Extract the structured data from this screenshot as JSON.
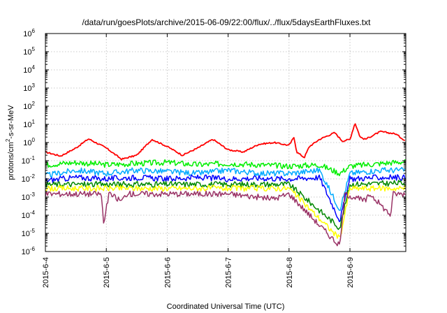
{
  "chart_data": {
    "type": "line",
    "title": "/data/run/goesPlots/archive/2015-06-09/22:00/flux/../flux/5daysEarthFluxes.txt",
    "xlabel": "Coordinated Universal Time (UTC)",
    "ylabel": {
      "pre": "protons/cm",
      "sup": "2",
      "post": "-s-sr-MeV"
    },
    "yscale": "log",
    "ylim": [
      1e-06,
      1000000.0
    ],
    "xlim": [
      "2015-06-04",
      "2015-06-09 22:00"
    ],
    "grid": true,
    "legend": "none",
    "x_ticks": [
      "2015-6-4",
      "2015-6-5",
      "2015-6-6",
      "2015-6-7",
      "2015-6-8",
      "2015-6-9"
    ],
    "y_ticks": [
      {
        "base": "10",
        "exp": "-6"
      },
      {
        "base": "10",
        "exp": "-5"
      },
      {
        "base": "10",
        "exp": "-4"
      },
      {
        "base": "10",
        "exp": "-3"
      },
      {
        "base": "10",
        "exp": "-2"
      },
      {
        "base": "10",
        "exp": "-1"
      },
      {
        "base": "10",
        "exp": "0"
      },
      {
        "base": "10",
        "exp": "1"
      },
      {
        "base": "10",
        "exp": "2"
      },
      {
        "base": "10",
        "exp": "3"
      },
      {
        "base": "10",
        "exp": "4"
      },
      {
        "base": "10",
        "exp": "5"
      },
      {
        "base": "10",
        "exp": "6"
      }
    ],
    "series": [
      {
        "color": "#ff0000",
        "values": [
          [
            "2015-06-04 00:00",
            0.3
          ],
          [
            "2015-06-04 06:00",
            0.18
          ],
          [
            "2015-06-04 12:00",
            0.5
          ],
          [
            "2015-06-04 17:00",
            1.6
          ],
          [
            "2015-06-05 00:00",
            0.5
          ],
          [
            "2015-06-05 06:00",
            0.12
          ],
          [
            "2015-06-05 12:00",
            0.2
          ],
          [
            "2015-06-05 18:00",
            1.5
          ],
          [
            "2015-06-06 00:00",
            0.6
          ],
          [
            "2015-06-06 06:00",
            0.2
          ],
          [
            "2015-06-06 12:00",
            0.5
          ],
          [
            "2015-06-06 18:00",
            1.5
          ],
          [
            "2015-06-07 00:00",
            0.4
          ],
          [
            "2015-06-07 06:00",
            0.3
          ],
          [
            "2015-06-07 12:00",
            0.8
          ],
          [
            "2015-06-07 18:00",
            1.0
          ],
          [
            "2015-06-08 00:00",
            0.7
          ],
          [
            "2015-06-08 02:00",
            2.0
          ],
          [
            "2015-06-08 03:00",
            0.3
          ],
          [
            "2015-06-08 06:00",
            0.15
          ],
          [
            "2015-06-08 08:00",
            0.6
          ],
          [
            "2015-06-08 12:00",
            1.5
          ],
          [
            "2015-06-08 18:00",
            3.5
          ],
          [
            "2015-06-08 21:00",
            1.2
          ],
          [
            "2015-06-09 00:00",
            1.5
          ],
          [
            "2015-06-09 02:00",
            12
          ],
          [
            "2015-06-09 04:00",
            2.0
          ],
          [
            "2015-06-09 06:00",
            1.5
          ],
          [
            "2015-06-09 12:00",
            4.0
          ],
          [
            "2015-06-09 18:00",
            3.0
          ],
          [
            "2015-06-09 22:00",
            1.2
          ]
        ]
      },
      {
        "color": "#00ee00",
        "values": [
          [
            "2015-06-04 00:00",
            0.06
          ],
          [
            "2015-06-04 12:00",
            0.08
          ],
          [
            "2015-06-05 00:00",
            0.06
          ],
          [
            "2015-06-05 12:00",
            0.07
          ],
          [
            "2015-06-06 00:00",
            0.08
          ],
          [
            "2015-06-06 12:00",
            0.06
          ],
          [
            "2015-06-07 00:00",
            0.07
          ],
          [
            "2015-06-07 12:00",
            0.06
          ],
          [
            "2015-06-08 00:00",
            0.05
          ],
          [
            "2015-06-08 12:00",
            0.06
          ],
          [
            "2015-06-08 20:00",
            0.02
          ],
          [
            "2015-06-09 00:00",
            0.05
          ],
          [
            "2015-06-09 12:00",
            0.07
          ],
          [
            "2015-06-09 22:00",
            0.09
          ]
        ]
      },
      {
        "color": "#00aaff",
        "values": [
          [
            "2015-06-04 00:00",
            0.015
          ],
          [
            "2015-06-04 12:00",
            0.03
          ],
          [
            "2015-06-05 00:00",
            0.02
          ],
          [
            "2015-06-05 12:00",
            0.03
          ],
          [
            "2015-06-06 00:00",
            0.025
          ],
          [
            "2015-06-06 12:00",
            0.02
          ],
          [
            "2015-06-07 00:00",
            0.03
          ],
          [
            "2015-06-07 12:00",
            0.02
          ],
          [
            "2015-06-08 00:00",
            0.02
          ],
          [
            "2015-06-08 12:00",
            0.03
          ],
          [
            "2015-06-08 20:00",
            0.0002
          ],
          [
            "2015-06-09 00:00",
            0.02
          ],
          [
            "2015-06-09 12:00",
            0.03
          ],
          [
            "2015-06-09 22:00",
            0.03
          ]
        ]
      },
      {
        "color": "#0000ff",
        "values": [
          [
            "2015-06-04 00:00",
            0.008
          ],
          [
            "2015-06-04 12:00",
            0.012
          ],
          [
            "2015-06-05 00:00",
            0.01
          ],
          [
            "2015-06-05 12:00",
            0.012
          ],
          [
            "2015-06-06 00:00",
            0.01
          ],
          [
            "2015-06-06 12:00",
            0.012
          ],
          [
            "2015-06-07 00:00",
            0.01
          ],
          [
            "2015-06-07 12:00",
            0.011
          ],
          [
            "2015-06-08 00:00",
            0.01
          ],
          [
            "2015-06-08 12:00",
            0.012
          ],
          [
            "2015-06-08 20:00",
            5e-05
          ],
          [
            "2015-06-09 00:00",
            0.01
          ],
          [
            "2015-06-09 12:00",
            0.012
          ],
          [
            "2015-06-09 22:00",
            0.012
          ]
        ]
      },
      {
        "color": "#008800",
        "values": [
          [
            "2015-06-04 00:00",
            0.005
          ],
          [
            "2015-06-05 00:00",
            0.005
          ],
          [
            "2015-06-06 00:00",
            0.005
          ],
          [
            "2015-06-07 00:00",
            0.005
          ],
          [
            "2015-06-08 00:00",
            0.005
          ],
          [
            "2015-06-08 20:00",
            2e-05
          ],
          [
            "2015-06-09 00:00",
            0.005
          ],
          [
            "2015-06-09 22:00",
            0.006
          ]
        ]
      },
      {
        "color": "#ffff00",
        "values": [
          [
            "2015-06-04 00:00",
            0.003
          ],
          [
            "2015-06-05 00:00",
            0.003
          ],
          [
            "2015-06-06 00:00",
            0.003
          ],
          [
            "2015-06-07 00:00",
            0.003
          ],
          [
            "2015-06-08 00:00",
            0.003
          ],
          [
            "2015-06-08 20:00",
            5e-06
          ],
          [
            "2015-06-09 00:00",
            0.003
          ],
          [
            "2015-06-09 22:00",
            0.003
          ]
        ]
      },
      {
        "color": "#993366",
        "values": [
          [
            "2015-06-04 00:00",
            0.0015
          ],
          [
            "2015-06-04 22:00",
            0.0015
          ],
          [
            "2015-06-04 23:00",
            3e-05
          ],
          [
            "2015-06-05 01:00",
            0.0015
          ],
          [
            "2015-06-05 06:00",
            0.0006
          ],
          [
            "2015-06-05 08:00",
            0.0015
          ],
          [
            "2015-06-06 00:00",
            0.0015
          ],
          [
            "2015-06-07 00:00",
            0.0015
          ],
          [
            "2015-06-07 18:00",
            0.0008
          ],
          [
            "2015-06-08 00:00",
            0.0015
          ],
          [
            "2015-06-08 20:00",
            2e-06
          ],
          [
            "2015-06-08 22:00",
            0.0015
          ],
          [
            "2015-06-09 06:00",
            0.0006
          ],
          [
            "2015-06-09 08:00",
            0.0015
          ],
          [
            "2015-06-09 16:00",
            0.0001
          ],
          [
            "2015-06-09 17:00",
            0.0015
          ],
          [
            "2015-06-09 22:00",
            0.0015
          ]
        ]
      }
    ]
  }
}
